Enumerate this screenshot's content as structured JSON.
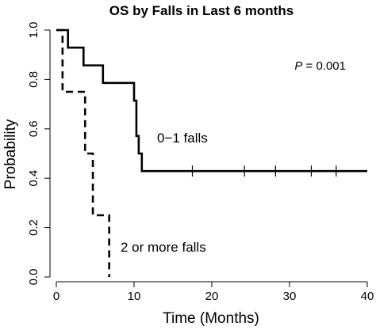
{
  "chart_data": {
    "type": "line",
    "title": "OS by Falls in Last 6 months",
    "xlabel": "Time (Months)",
    "ylabel": "Probability",
    "xlim": [
      0,
      40
    ],
    "ylim": [
      0,
      1
    ],
    "x_ticks": [
      0,
      10,
      20,
      30,
      40
    ],
    "y_ticks": [
      0.0,
      0.2,
      0.4,
      0.6,
      0.8,
      1.0
    ],
    "x_tick_labels": [
      "0",
      "10",
      "20",
      "30",
      "40"
    ],
    "y_tick_labels": [
      "0.0",
      "0.2",
      "0.4",
      "0.6",
      "0.8",
      "1.0"
    ],
    "grid": false,
    "annotation": {
      "p_label": "P",
      "p_rest": " = 0.001"
    },
    "series": [
      {
        "name": "0−1 falls",
        "style": "solid",
        "color": "#000000",
        "steps": [
          [
            0,
            1.0
          ],
          [
            1.5,
            1.0
          ],
          [
            1.5,
            0.929
          ],
          [
            3.5,
            0.929
          ],
          [
            3.5,
            0.857
          ],
          [
            6.0,
            0.857
          ],
          [
            6.0,
            0.786
          ],
          [
            10.0,
            0.786
          ],
          [
            10.0,
            0.714
          ],
          [
            10.3,
            0.714
          ],
          [
            10.3,
            0.571
          ],
          [
            10.6,
            0.571
          ],
          [
            10.6,
            0.5
          ],
          [
            11.0,
            0.5
          ],
          [
            11.0,
            0.429
          ],
          [
            40.0,
            0.429
          ]
        ],
        "censor_times": [
          17.5,
          24.2,
          28.2,
          32.8,
          36.0
        ]
      },
      {
        "name": "2 or more falls",
        "style": "dashed",
        "color": "#000000",
        "steps": [
          [
            0,
            1.0
          ],
          [
            0.8,
            1.0
          ],
          [
            0.8,
            0.75
          ],
          [
            3.7,
            0.75
          ],
          [
            3.7,
            0.5
          ],
          [
            4.7,
            0.5
          ],
          [
            4.7,
            0.25
          ],
          [
            6.8,
            0.25
          ],
          [
            6.8,
            0.0
          ]
        ],
        "censor_times": []
      }
    ]
  }
}
